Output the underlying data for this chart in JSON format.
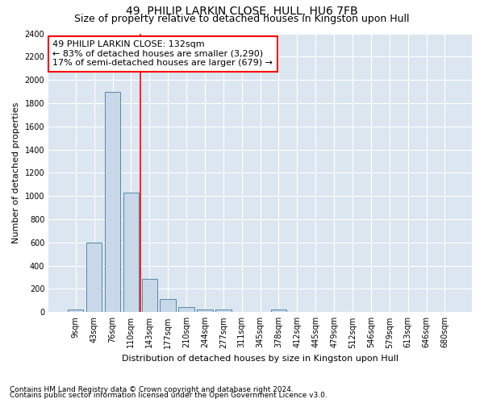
{
  "title": "49, PHILIP LARKIN CLOSE, HULL, HU6 7FB",
  "subtitle": "Size of property relative to detached houses in Kingston upon Hull",
  "xlabel": "Distribution of detached houses by size in Kingston upon Hull",
  "ylabel": "Number of detached properties",
  "footnote1": "Contains HM Land Registry data © Crown copyright and database right 2024.",
  "footnote2": "Contains public sector information licensed under the Open Government Licence v3.0.",
  "categories": [
    "9sqm",
    "43sqm",
    "76sqm",
    "110sqm",
    "143sqm",
    "177sqm",
    "210sqm",
    "244sqm",
    "277sqm",
    "311sqm",
    "345sqm",
    "378sqm",
    "412sqm",
    "445sqm",
    "479sqm",
    "512sqm",
    "546sqm",
    "579sqm",
    "613sqm",
    "646sqm",
    "680sqm"
  ],
  "values": [
    20,
    600,
    1900,
    1030,
    290,
    115,
    45,
    25,
    20,
    0,
    0,
    20,
    0,
    0,
    0,
    0,
    0,
    0,
    0,
    0,
    0
  ],
  "bar_color": "#c8d8e8",
  "bar_edge_color": "#5588aa",
  "vline_x": 3.5,
  "vline_color": "red",
  "annotation_text": "49 PHILIP LARKIN CLOSE: 132sqm\n← 83% of detached houses are smaller (3,290)\n17% of semi-detached houses are larger (679) →",
  "annotation_box_facecolor": "white",
  "annotation_box_edgecolor": "red",
  "ylim": [
    0,
    2400
  ],
  "yticks": [
    0,
    200,
    400,
    600,
    800,
    1000,
    1200,
    1400,
    1600,
    1800,
    2000,
    2200,
    2400
  ],
  "background_color": "#ffffff",
  "plot_background_color": "#dce6f0",
  "grid_color": "#ffffff",
  "title_fontsize": 10,
  "subtitle_fontsize": 9,
  "ylabel_fontsize": 8,
  "xlabel_fontsize": 8,
  "annotation_fontsize": 8,
  "tick_fontsize": 7,
  "footnote_fontsize": 6.5
}
